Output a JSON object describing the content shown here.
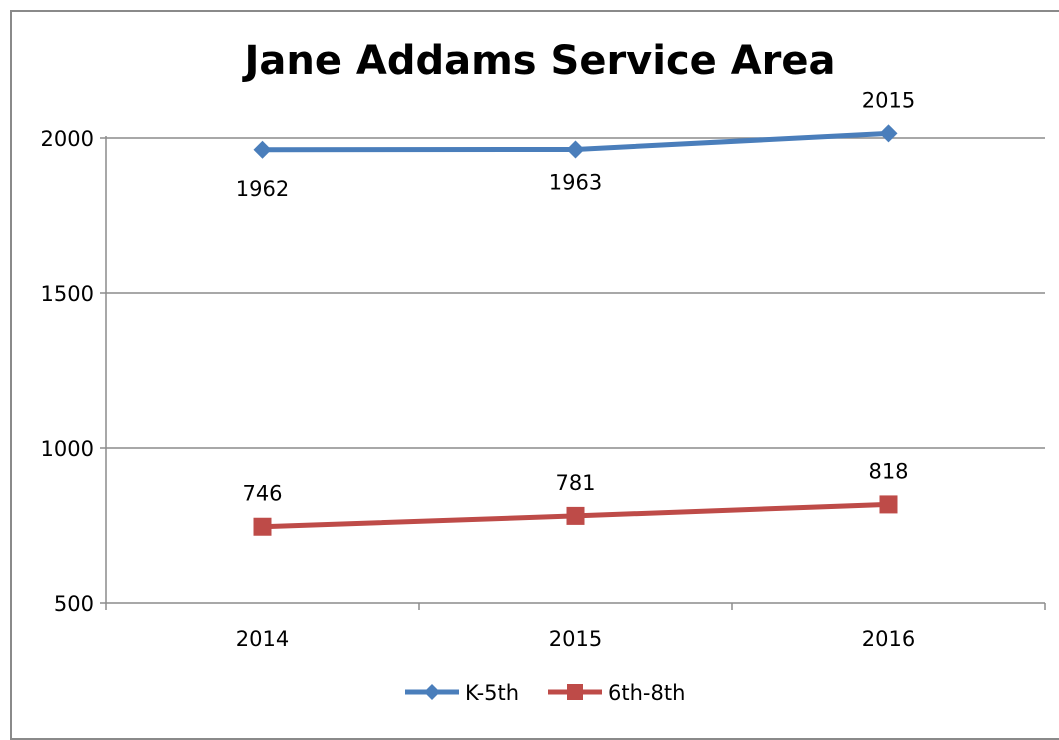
{
  "chart_data": {
    "type": "line",
    "title": "Jane Addams Service Area",
    "categories": [
      "2014",
      "2015",
      "2016"
    ],
    "ylim": [
      500,
      2000
    ],
    "yticks": [
      500,
      1000,
      1500,
      2000
    ],
    "grid": true,
    "legend_position": "bottom",
    "series": [
      {
        "name": "K-5th",
        "values": [
          1962,
          1963,
          2015
        ],
        "labels": [
          "1962",
          "1963",
          "2015"
        ],
        "color": "#4a7ebb",
        "marker": "diamond"
      },
      {
        "name": "6th-8th",
        "values": [
          746,
          781,
          818
        ],
        "labels": [
          "746",
          "781",
          "818"
        ],
        "color": "#be4b48",
        "marker": "square"
      }
    ]
  }
}
